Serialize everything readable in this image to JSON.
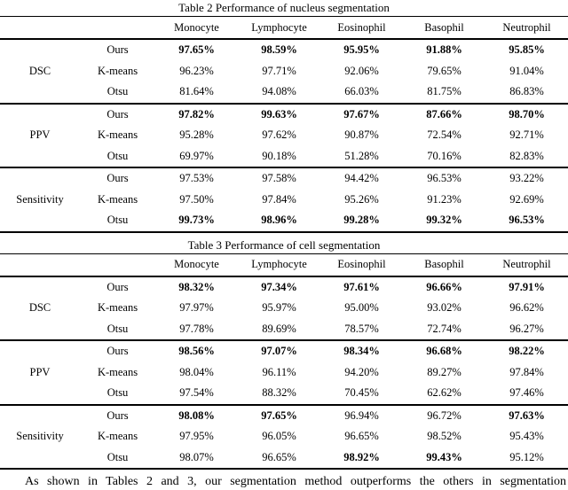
{
  "page": {
    "background": "#ffffff",
    "text_color": "#000000",
    "rule_color": "#000000"
  },
  "footer_text": "As shown in Tables 2 and 3, our segmentation method outperforms the others in segmentation",
  "tables": [
    {
      "title": "Table 2 Performance of nucleus segmentation",
      "columns": [
        "Monocyte",
        "Lymphocyte",
        "Eosinophil",
        "Basophil",
        "Neutrophil"
      ],
      "sections": [
        {
          "metric": "DSC",
          "rows": [
            {
              "method": "Ours",
              "values": [
                "97.65%",
                "98.59%",
                "95.95%",
                "91.88%",
                "95.85%"
              ],
              "bold": [
                true,
                true,
                true,
                true,
                true
              ]
            },
            {
              "method": "K-means",
              "values": [
                "96.23%",
                "97.71%",
                "92.06%",
                "79.65%",
                "91.04%"
              ],
              "bold": [
                false,
                false,
                false,
                false,
                false
              ]
            },
            {
              "method": "Otsu",
              "values": [
                "81.64%",
                "94.08%",
                "66.03%",
                "81.75%",
                "86.83%"
              ],
              "bold": [
                false,
                false,
                false,
                false,
                false
              ]
            }
          ]
        },
        {
          "metric": "PPV",
          "rows": [
            {
              "method": "Ours",
              "values": [
                "97.82%",
                "99.63%",
                "97.67%",
                "87.66%",
                "98.70%"
              ],
              "bold": [
                true,
                true,
                true,
                true,
                true
              ]
            },
            {
              "method": "K-means",
              "values": [
                "95.28%",
                "97.62%",
                "90.87%",
                "72.54%",
                "92.71%"
              ],
              "bold": [
                false,
                false,
                false,
                false,
                false
              ]
            },
            {
              "method": "Otsu",
              "values": [
                "69.97%",
                "90.18%",
                "51.28%",
                "70.16%",
                "82.83%"
              ],
              "bold": [
                false,
                false,
                false,
                false,
                false
              ]
            }
          ]
        },
        {
          "metric": "Sensitivity",
          "rows": [
            {
              "method": "Ours",
              "values": [
                "97.53%",
                "97.58%",
                "94.42%",
                "96.53%",
                "93.22%"
              ],
              "bold": [
                false,
                false,
                false,
                false,
                false
              ]
            },
            {
              "method": "K-means",
              "values": [
                "97.50%",
                "97.84%",
                "95.26%",
                "91.23%",
                "92.69%"
              ],
              "bold": [
                false,
                false,
                false,
                false,
                false
              ]
            },
            {
              "method": "Otsu",
              "values": [
                "99.73%",
                "98.96%",
                "99.28%",
                "99.32%",
                "96.53%"
              ],
              "bold": [
                true,
                true,
                true,
                true,
                true
              ]
            }
          ]
        }
      ]
    },
    {
      "title": "Table 3 Performance of cell segmentation",
      "columns": [
        "Monocyte",
        "Lymphocyte",
        "Eosinophil",
        "Basophil",
        "Neutrophil"
      ],
      "sections": [
        {
          "metric": "DSC",
          "rows": [
            {
              "method": "Ours",
              "values": [
                "98.32%",
                "97.34%",
                "97.61%",
                "96.66%",
                "97.91%"
              ],
              "bold": [
                true,
                true,
                true,
                true,
                true
              ]
            },
            {
              "method": "K-means",
              "values": [
                "97.97%",
                "95.97%",
                "95.00%",
                "93.02%",
                "96.62%"
              ],
              "bold": [
                false,
                false,
                false,
                false,
                false
              ]
            },
            {
              "method": "Otsu",
              "values": [
                "97.78%",
                "89.69%",
                "78.57%",
                "72.74%",
                "96.27%"
              ],
              "bold": [
                false,
                false,
                false,
                false,
                false
              ]
            }
          ]
        },
        {
          "metric": "PPV",
          "rows": [
            {
              "method": "Ours",
              "values": [
                "98.56%",
                "97.07%",
                "98.34%",
                "96.68%",
                "98.22%"
              ],
              "bold": [
                true,
                true,
                true,
                true,
                true
              ]
            },
            {
              "method": "K-means",
              "values": [
                "98.04%",
                "96.11%",
                "94.20%",
                "89.27%",
                "97.84%"
              ],
              "bold": [
                false,
                false,
                false,
                false,
                false
              ]
            },
            {
              "method": "Otsu",
              "values": [
                "97.54%",
                "88.32%",
                "70.45%",
                "62.62%",
                "97.46%"
              ],
              "bold": [
                false,
                false,
                false,
                false,
                false
              ]
            }
          ]
        },
        {
          "metric": "Sensitivity",
          "rows": [
            {
              "method": "Ours",
              "values": [
                "98.08%",
                "97.65%",
                "96.94%",
                "96.72%",
                "97.63%"
              ],
              "bold": [
                true,
                true,
                false,
                false,
                true
              ]
            },
            {
              "method": "K-means",
              "values": [
                "97.95%",
                "96.05%",
                "96.65%",
                "98.52%",
                "95.43%"
              ],
              "bold": [
                false,
                false,
                false,
                false,
                false
              ]
            },
            {
              "method": "Otsu",
              "values": [
                "98.07%",
                "96.65%",
                "98.92%",
                "99.43%",
                "95.12%"
              ],
              "bold": [
                false,
                false,
                true,
                true,
                false
              ]
            }
          ]
        }
      ]
    }
  ]
}
